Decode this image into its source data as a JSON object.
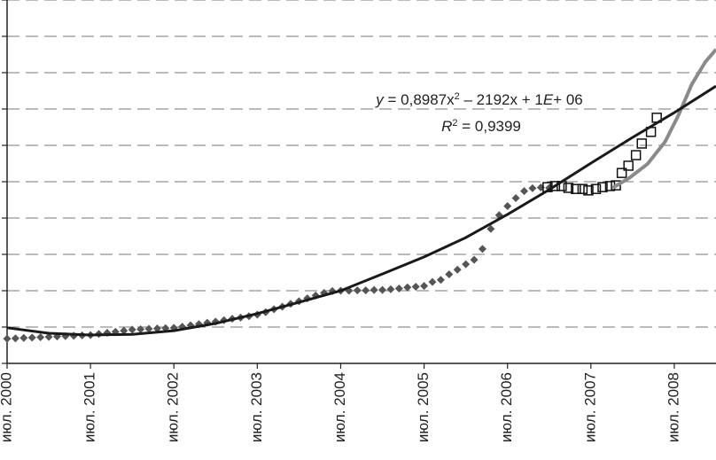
{
  "chart_data": {
    "type": "line",
    "xlim": [
      2000.5,
      2009.0
    ],
    "xticks": [
      {
        "value": 2000.5,
        "label": "июл. 2000"
      },
      {
        "value": 2001.5,
        "label": "июл. 2001"
      },
      {
        "value": 2002.5,
        "label": "июл. 2002"
      },
      {
        "value": 2003.5,
        "label": "июл. 2003"
      },
      {
        "value": 2004.5,
        "label": "июл. 2004"
      },
      {
        "value": 2005.5,
        "label": "июл. 2005"
      },
      {
        "value": 2006.5,
        "label": "июл. 2006"
      },
      {
        "value": 2007.5,
        "label": "июл. 2007"
      },
      {
        "value": 2008.5,
        "label": "июл. 2008"
      }
    ],
    "ylim": [
      0,
      10
    ],
    "yticks": [
      0,
      1,
      2,
      3,
      4,
      5,
      6,
      7,
      8,
      9,
      10
    ],
    "grid": true,
    "series": [
      {
        "marker": "diamond",
        "color": "#555555",
        "x": [
          2000.5,
          2000.6,
          2000.7,
          2000.8,
          2000.9,
          2001.0,
          2001.1,
          2001.2,
          2001.3,
          2001.4,
          2001.5,
          2001.6,
          2001.7,
          2001.8,
          2001.9,
          2002.0,
          2002.1,
          2002.2,
          2002.3,
          2002.4,
          2002.5,
          2002.6,
          2002.7,
          2002.8,
          2002.9,
          2003.0,
          2003.1,
          2003.2,
          2003.3,
          2003.4,
          2003.5,
          2003.6,
          2003.7,
          2003.8,
          2003.9,
          2004.0,
          2004.1,
          2004.2,
          2004.3,
          2004.4,
          2004.5,
          2004.6,
          2004.7,
          2004.8,
          2004.9,
          2005.0,
          2005.1,
          2005.2,
          2005.3,
          2005.4,
          2005.5,
          2005.6,
          2005.7,
          2005.8,
          2005.9,
          2006.0,
          2006.1,
          2006.2,
          2006.3,
          2006.4,
          2006.5,
          2006.6,
          2006.7,
          2006.8,
          2006.9,
          2007.0
        ],
        "values": [
          0.68,
          0.69,
          0.7,
          0.71,
          0.72,
          0.73,
          0.74,
          0.75,
          0.76,
          0.77,
          0.78,
          0.81,
          0.84,
          0.87,
          0.9,
          0.93,
          0.94,
          0.95,
          0.96,
          0.97,
          0.98,
          1.01,
          1.05,
          1.08,
          1.12,
          1.15,
          1.19,
          1.23,
          1.26,
          1.3,
          1.34,
          1.41,
          1.49,
          1.56,
          1.64,
          1.71,
          1.79,
          1.87,
          1.94,
          1.99,
          2.0,
          2.0,
          2.01,
          2.01,
          2.02,
          2.02,
          2.04,
          2.06,
          2.09,
          2.11,
          2.13,
          2.24,
          2.3,
          2.45,
          2.58,
          2.73,
          2.85,
          3.15,
          3.7,
          4.08,
          4.33,
          4.55,
          4.74,
          4.82,
          4.84,
          4.83
        ]
      },
      {
        "marker": "square",
        "color": "#111111",
        "x": [
          2006.98,
          2007.07,
          2007.15,
          2007.23,
          2007.32,
          2007.4,
          2007.47,
          2007.56,
          2007.64,
          2007.73,
          2007.8,
          2007.87,
          2007.95,
          2008.04,
          2008.11,
          2008.22,
          2008.29
        ],
        "values": [
          4.85,
          4.88,
          4.88,
          4.83,
          4.8,
          4.8,
          4.76,
          4.8,
          4.85,
          4.88,
          4.9,
          5.24,
          5.44,
          5.73,
          6.05,
          6.37,
          6.76
        ]
      },
      {
        "marker": "none",
        "color": "#8a8a8a",
        "x": [
          2007.76,
          2007.97,
          2008.18,
          2008.39,
          2008.55,
          2008.71,
          2008.87,
          2009.0
        ],
        "values": [
          4.83,
          5.12,
          5.49,
          6.1,
          6.83,
          7.68,
          8.29,
          8.64
        ]
      },
      {
        "marker": "none",
        "color": "#1a1a1a",
        "x": [
          2000.5,
          2001.0,
          2001.5,
          2002.0,
          2002.5,
          2003.0,
          2003.5,
          2004.0,
          2004.5,
          2005.0,
          2005.5,
          2006.0,
          2006.5,
          2007.0,
          2007.5,
          2008.0,
          2008.5,
          2009.0
        ],
        "values": [
          0.98,
          0.83,
          0.78,
          0.8,
          0.9,
          1.1,
          1.37,
          1.68,
          2.0,
          2.46,
          2.93,
          3.46,
          4.1,
          4.78,
          5.51,
          6.22,
          6.9,
          7.63
        ]
      }
    ],
    "annotation": {
      "equation": [
        {
          "text": "y",
          "style": "italic"
        },
        {
          "text": " = 0,8987x"
        },
        {
          "text": "2",
          "style": "sup"
        },
        {
          "text": " – 2192x + 1"
        },
        {
          "text": "E",
          "style": "italic"
        },
        {
          "text": "+ 06"
        }
      ],
      "r_squared": [
        {
          "text": "R",
          "style": "italic"
        },
        {
          "text": "2",
          "style": "sup"
        },
        {
          "text": " = 0,9399"
        }
      ]
    }
  }
}
